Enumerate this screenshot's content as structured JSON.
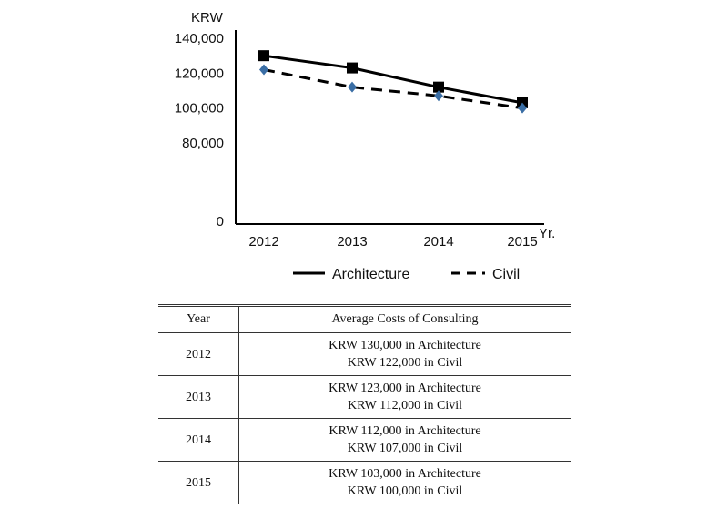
{
  "chart_data": {
    "type": "line",
    "y_unit_label": "KRW",
    "x_unit_label": "Yr.",
    "categories": [
      "2012",
      "2013",
      "2014",
      "2015"
    ],
    "y_ticks": [
      {
        "value": 140000,
        "label": "140,000"
      },
      {
        "value": 120000,
        "label": "120,000"
      },
      {
        "value": 100000,
        "label": "100,000"
      },
      {
        "value": 80000,
        "label": "80,000"
      },
      {
        "value": 0,
        "label": "0"
      }
    ],
    "y_axis_break": {
      "from": 0,
      "to": 80000
    },
    "series": [
      {
        "name": "Architecture",
        "values": [
          130000,
          123000,
          112000,
          103000
        ],
        "line_style": "solid",
        "marker": "square",
        "line_color": "#000000",
        "marker_color": "#000000"
      },
      {
        "name": "Civil",
        "values": [
          122000,
          112000,
          107000,
          100000
        ],
        "line_style": "dashed",
        "marker": "diamond",
        "line_color": "#000000",
        "marker_color": "#3a6ea5"
      }
    ],
    "legend_position": "bottom",
    "grid": false
  },
  "table": {
    "headers": [
      "Year",
      "Average Costs of Consulting"
    ],
    "rows": [
      {
        "year": "2012",
        "arch": "KRW 130,000 in Architecture",
        "civil": "KRW 122,000 in Civil"
      },
      {
        "year": "2013",
        "arch": "KRW 123,000 in Architecture",
        "civil": "KRW 112,000 in Civil"
      },
      {
        "year": "2014",
        "arch": "KRW 112,000 in Architecture",
        "civil": "KRW 107,000 in Civil"
      },
      {
        "year": "2015",
        "arch": "KRW 103,000 in Architecture",
        "civil": "KRW 100,000 in Civil"
      }
    ]
  }
}
